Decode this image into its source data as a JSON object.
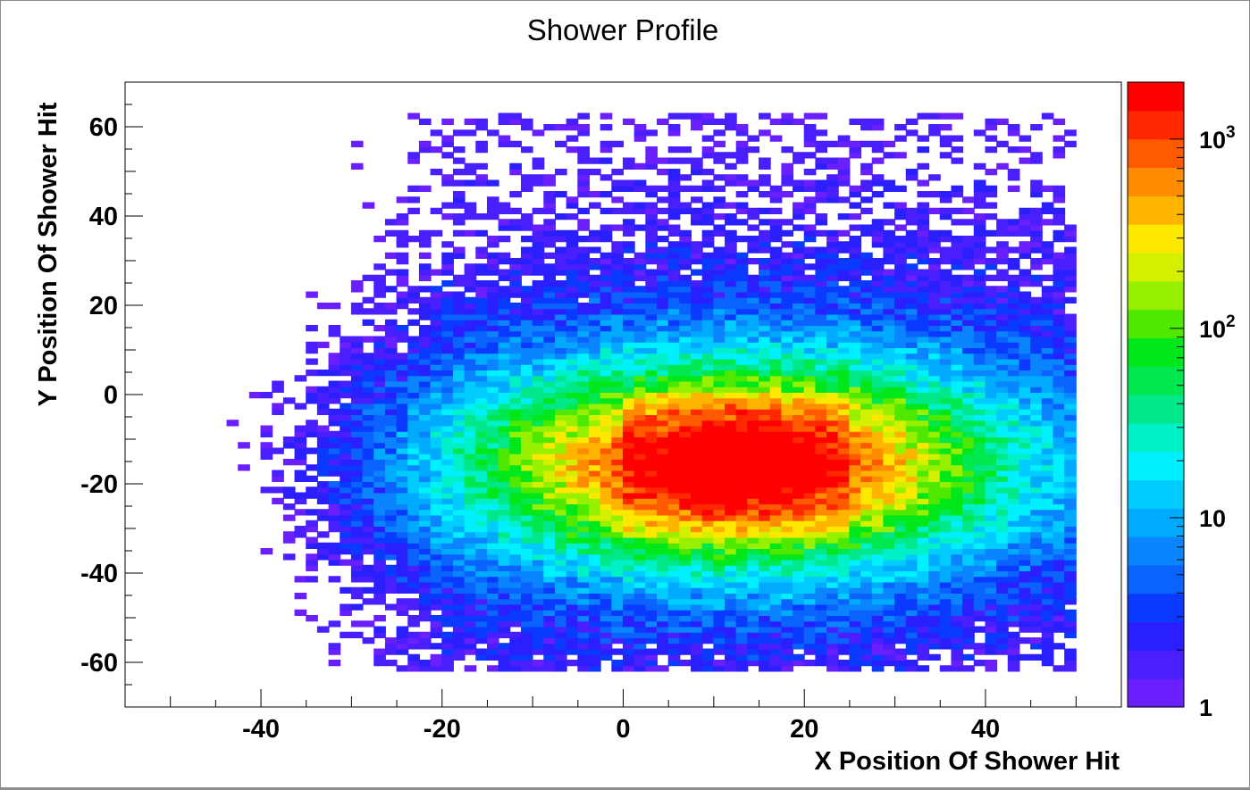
{
  "chart_data": {
    "type": "heatmap",
    "title": "Shower Profile",
    "xlabel": "X Position Of Shower Hit",
    "ylabel": "Y Position Of Shower Hit",
    "xlim": [
      -55,
      55
    ],
    "ylim": [
      -70,
      70
    ],
    "x_ticks": [
      -40,
      -20,
      0,
      20,
      40
    ],
    "y_ticks": [
      -60,
      -40,
      -20,
      0,
      20,
      40,
      60
    ],
    "z_scale": "log",
    "zlim": [
      1,
      2000
    ],
    "z_ticks": [
      {
        "value": 1,
        "base": "1",
        "exp": ""
      },
      {
        "value": 10,
        "base": "10",
        "exp": ""
      },
      {
        "value": 100,
        "base": "10",
        "exp": "2"
      },
      {
        "value": 1000,
        "base": "10",
        "exp": "3"
      }
    ],
    "z_palette": [
      "#6a1fff",
      "#4a1fff",
      "#2a1fff",
      "#0a3aff",
      "#0a62ff",
      "#0a85ff",
      "#00aaff",
      "#00ccff",
      "#00f0ff",
      "#00f0c8",
      "#00e88a",
      "#00e850",
      "#00e81a",
      "#4ee800",
      "#96f000",
      "#d4f000",
      "#ffe800",
      "#ffb400",
      "#ff8c00",
      "#ff5a00",
      "#ff2800",
      "#ff0000"
    ],
    "hotspot": {
      "x": 12.5,
      "y": -15.5,
      "peak_count": 2000
    },
    "core_region": {
      "x": [
        0,
        25
      ],
      "y": [
        -32,
        0
      ]
    },
    "data_extent": {
      "x": [
        -50,
        50
      ],
      "y": [
        -62,
        62
      ]
    }
  }
}
